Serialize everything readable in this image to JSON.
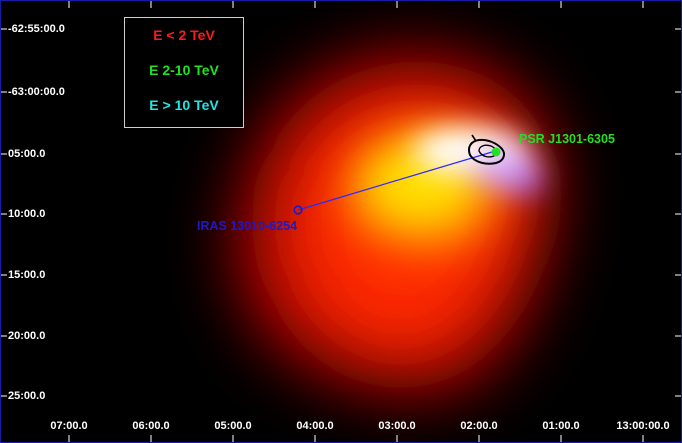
{
  "y_axis_labels": [
    "-62:55:00.0",
    "-63:00:00.0",
    "05:00.0",
    "10:00.0",
    "15:00.0",
    "20:00.0",
    "25:00.0"
  ],
  "x_axis_labels": [
    "07:00.0",
    "06:00.0",
    "05:00.0",
    "04:00.0",
    "03:00.0",
    "02:00.0",
    "01:00.0",
    "13:00:00.0"
  ],
  "legend": {
    "low": {
      "label": "E < 2 TeV",
      "color": "#ff1a1a"
    },
    "mid": {
      "label": "E 2-10 TeV",
      "color": "#22e022"
    },
    "high": {
      "label": "E > 10 TeV",
      "color": "#22e5e5"
    }
  },
  "sources": {
    "pulsar": {
      "label": "PSR J1301-6305",
      "color": "#22e022"
    },
    "iras": {
      "label": "IRAS 13010-6254",
      "color": "#1a1acc"
    }
  },
  "colors": {
    "background": "#000000",
    "frame": "#1a1aa8",
    "connector_line": "#2a2aff",
    "contour": "#000000"
  }
}
